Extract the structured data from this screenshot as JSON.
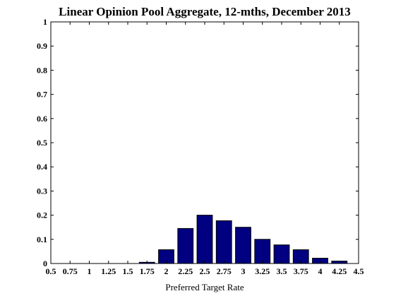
{
  "chart_data": {
    "type": "bar",
    "title": "Linear Opinion Pool Aggregate, 12-mths, December 2013",
    "xlabel": "Preferred Target Rate",
    "ylabel": "",
    "xlim": [
      0.5,
      4.5
    ],
    "ylim": [
      0,
      1
    ],
    "x_ticks": [
      "0.5",
      "0.75",
      "1",
      "1.25",
      "1.5",
      "1.75",
      "2",
      "2.25",
      "2.5",
      "2.75",
      "3",
      "3.25",
      "3.5",
      "3.75",
      "4",
      "4.25",
      "4.5"
    ],
    "y_ticks": [
      "0",
      "0.1",
      "0.2",
      "0.3",
      "0.4",
      "0.5",
      "0.6",
      "0.7",
      "0.8",
      "0.9",
      "1"
    ],
    "x": [
      0.75,
      1,
      1.25,
      1.5,
      1.75,
      2,
      2.25,
      2.5,
      2.75,
      3,
      3.25,
      3.5,
      3.75,
      4,
      4.25
    ],
    "values": [
      0,
      0,
      0,
      0,
      0.005,
      0.057,
      0.145,
      0.2,
      0.177,
      0.15,
      0.1,
      0.077,
      0.057,
      0.022,
      0.01
    ],
    "bar_color": "#000080",
    "grid": false,
    "legend": "none"
  }
}
